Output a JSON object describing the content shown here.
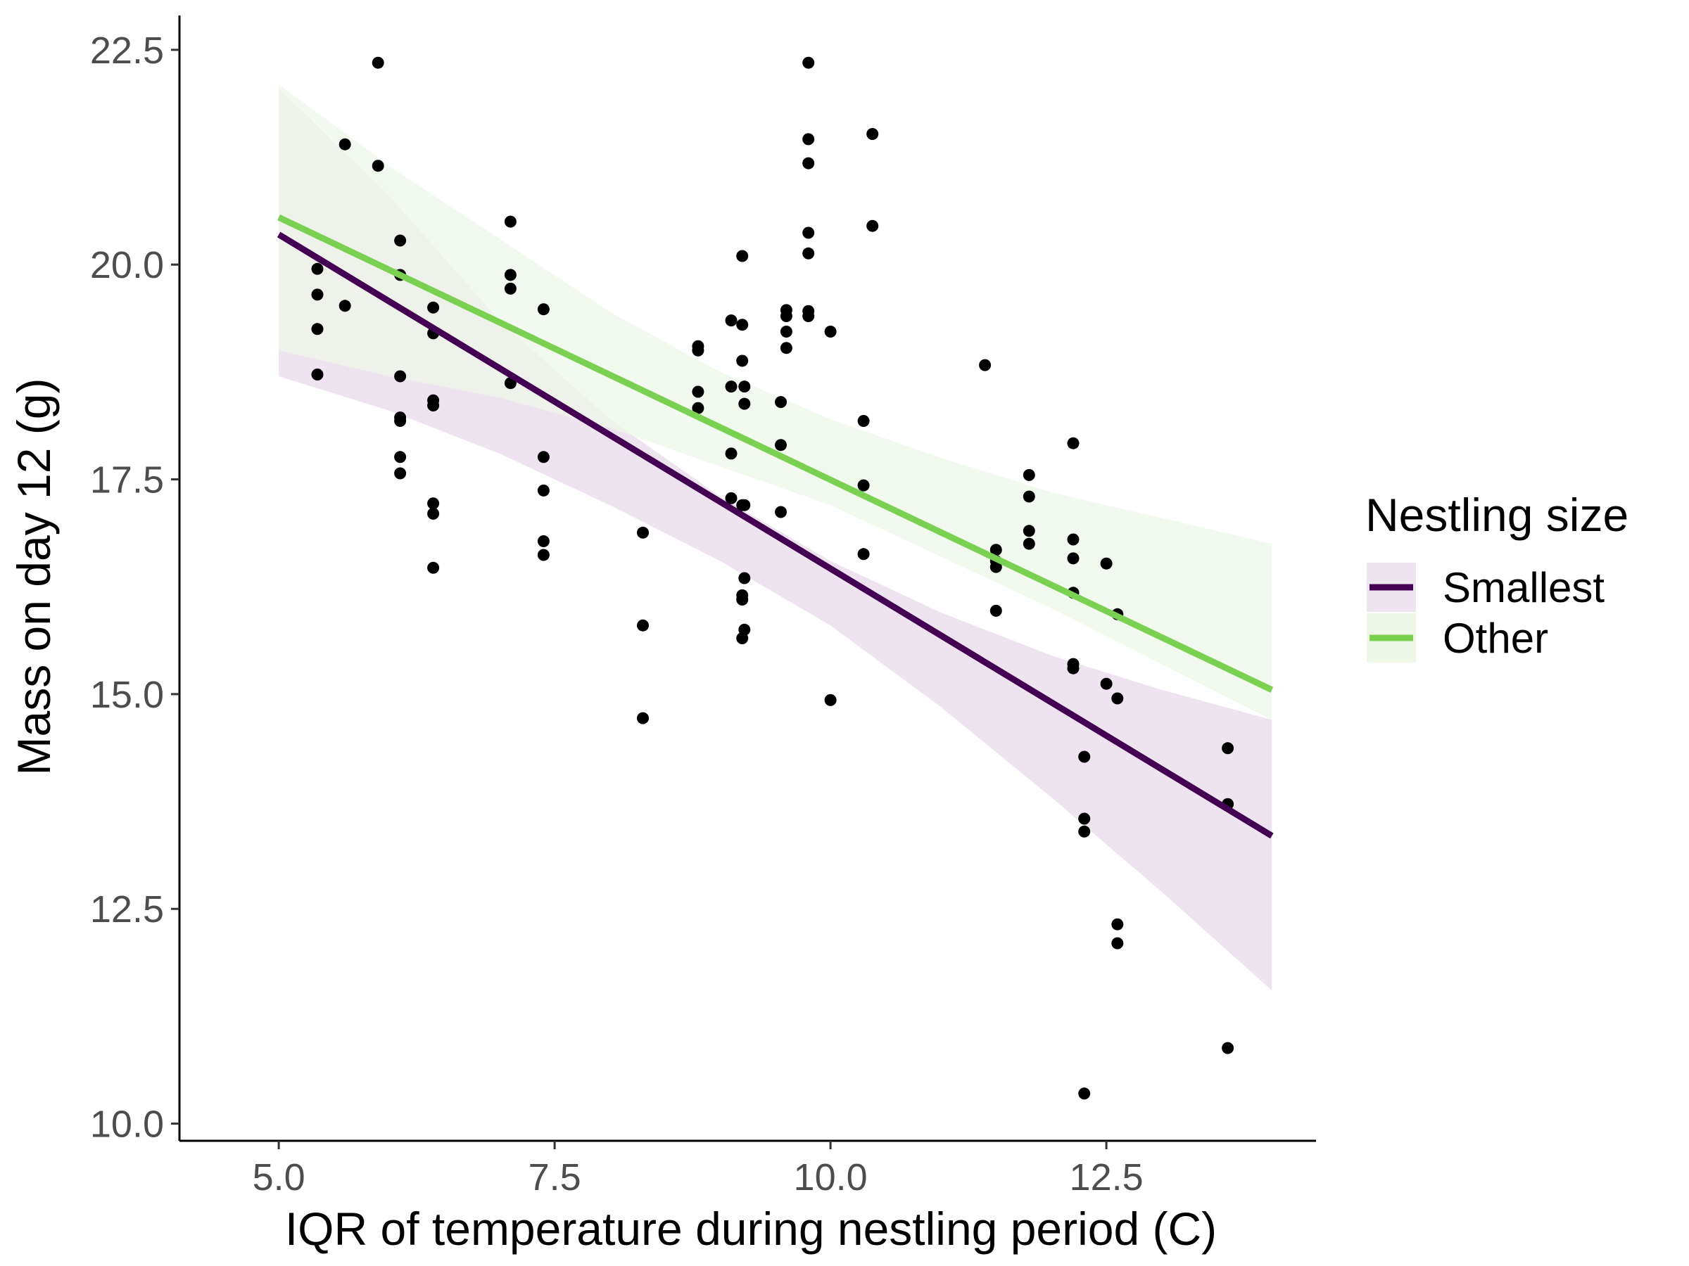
{
  "chart_data": {
    "type": "scatter",
    "xlabel": "IQR of temperature during nestling period (C)",
    "ylabel": "Mass on day 12 (g)",
    "xlim": [
      4.1,
      14.4
    ],
    "ylim": [
      9.8,
      22.9
    ],
    "x_ticks": [
      5.0,
      7.5,
      10.0,
      12.5
    ],
    "y_ticks": [
      10.0,
      12.5,
      15.0,
      17.5,
      20.0,
      22.5
    ],
    "x_tick_labels": [
      "5.0",
      "7.5",
      "10.0",
      "12.5"
    ],
    "y_tick_labels": [
      "10.0",
      "12.5",
      "15.0",
      "17.5",
      "20.0",
      "22.5"
    ],
    "grid": false,
    "legend": {
      "title": "Nestling size",
      "position": "right",
      "entries": [
        {
          "label": "Smallest",
          "line_color": "#440154",
          "fill_color": "#ede4ef"
        },
        {
          "label": "Other",
          "line_color": "#7ad151",
          "fill_color": "#eef7e8"
        }
      ]
    },
    "points": [
      [
        5.35,
        19.95
      ],
      [
        5.35,
        19.65
      ],
      [
        5.35,
        19.25
      ],
      [
        5.35,
        18.72
      ],
      [
        5.6,
        21.4
      ],
      [
        5.6,
        19.52
      ],
      [
        5.9,
        22.35
      ],
      [
        5.9,
        21.15
      ],
      [
        6.1,
        20.28
      ],
      [
        6.1,
        19.88
      ],
      [
        6.1,
        18.7
      ],
      [
        6.1,
        18.22
      ],
      [
        6.1,
        18.18
      ],
      [
        6.1,
        17.76
      ],
      [
        6.1,
        17.57
      ],
      [
        6.4,
        19.5
      ],
      [
        6.4,
        19.2
      ],
      [
        6.4,
        18.42
      ],
      [
        6.4,
        18.36
      ],
      [
        6.4,
        17.22
      ],
      [
        6.4,
        17.1
      ],
      [
        6.4,
        16.47
      ],
      [
        7.1,
        20.5
      ],
      [
        7.1,
        19.88
      ],
      [
        7.1,
        19.72
      ],
      [
        7.1,
        18.62
      ],
      [
        7.4,
        19.48
      ],
      [
        7.4,
        17.76
      ],
      [
        7.4,
        17.37
      ],
      [
        7.4,
        16.78
      ],
      [
        7.4,
        16.62
      ],
      [
        8.3,
        16.88
      ],
      [
        8.3,
        15.8
      ],
      [
        8.3,
        14.72
      ],
      [
        8.8,
        19.05
      ],
      [
        8.8,
        19.0
      ],
      [
        8.8,
        18.52
      ],
      [
        8.8,
        18.33
      ],
      [
        9.1,
        19.35
      ],
      [
        9.1,
        18.58
      ],
      [
        9.1,
        17.8
      ],
      [
        9.1,
        17.28
      ],
      [
        9.2,
        20.1
      ],
      [
        9.2,
        19.3
      ],
      [
        9.2,
        18.88
      ],
      [
        9.2,
        17.2
      ],
      [
        9.2,
        16.15
      ],
      [
        9.2,
        16.1
      ],
      [
        9.2,
        15.65
      ],
      [
        9.22,
        18.58
      ],
      [
        9.22,
        18.38
      ],
      [
        9.22,
        17.2
      ],
      [
        9.22,
        16.35
      ],
      [
        9.22,
        15.75
      ],
      [
        9.55,
        18.4
      ],
      [
        9.55,
        17.9
      ],
      [
        9.55,
        17.12
      ],
      [
        9.6,
        19.47
      ],
      [
        9.6,
        19.4
      ],
      [
        9.6,
        19.22
      ],
      [
        9.6,
        19.03
      ],
      [
        9.8,
        22.35
      ],
      [
        9.8,
        21.46
      ],
      [
        9.8,
        21.18
      ],
      [
        9.8,
        20.37
      ],
      [
        9.8,
        20.13
      ],
      [
        9.8,
        19.46
      ],
      [
        9.8,
        19.4
      ],
      [
        10.0,
        19.22
      ],
      [
        10.0,
        14.93
      ],
      [
        10.3,
        18.18
      ],
      [
        10.3,
        17.43
      ],
      [
        10.3,
        16.63
      ],
      [
        10.38,
        21.52
      ],
      [
        10.38,
        20.45
      ],
      [
        11.4,
        18.83
      ],
      [
        11.5,
        16.68
      ],
      [
        11.5,
        16.55
      ],
      [
        11.5,
        16.48
      ],
      [
        11.5,
        15.97
      ],
      [
        11.8,
        17.55
      ],
      [
        11.8,
        17.3
      ],
      [
        11.8,
        16.9
      ],
      [
        11.8,
        16.75
      ],
      [
        12.2,
        17.92
      ],
      [
        12.2,
        16.8
      ],
      [
        12.2,
        16.58
      ],
      [
        12.2,
        16.18
      ],
      [
        12.2,
        15.35
      ],
      [
        12.2,
        15.3
      ],
      [
        12.3,
        14.27
      ],
      [
        12.3,
        13.55
      ],
      [
        12.3,
        13.4
      ],
      [
        12.3,
        10.35
      ],
      [
        12.5,
        16.52
      ],
      [
        12.5,
        15.12
      ],
      [
        12.6,
        15.93
      ],
      [
        12.6,
        14.95
      ],
      [
        12.6,
        12.32
      ],
      [
        12.6,
        12.1
      ],
      [
        13.6,
        14.37
      ],
      [
        13.6,
        13.72
      ],
      [
        13.6,
        10.88
      ]
    ],
    "series": [
      {
        "name": "Smallest",
        "color": "#440154",
        "fill": "#ede4ef",
        "line": [
          [
            5.0,
            20.35
          ],
          [
            14.0,
            13.35
          ]
        ],
        "ci_upper": [
          [
            5.0,
            22.05
          ],
          [
            6.0,
            20.8
          ],
          [
            7.0,
            19.35
          ],
          [
            8.0,
            18.2
          ],
          [
            9.0,
            17.3
          ],
          [
            10.0,
            16.55
          ],
          [
            11.0,
            15.95
          ],
          [
            12.0,
            15.45
          ],
          [
            13.0,
            15.05
          ],
          [
            14.0,
            14.7
          ]
        ],
        "ci_lower": [
          [
            5.0,
            18.7
          ],
          [
            6.0,
            18.3
          ],
          [
            7.0,
            17.8
          ],
          [
            8.0,
            17.2
          ],
          [
            9.0,
            16.55
          ],
          [
            10.0,
            15.8
          ],
          [
            11.0,
            14.85
          ],
          [
            12.0,
            13.8
          ],
          [
            13.0,
            12.7
          ],
          [
            14.0,
            11.55
          ]
        ]
      },
      {
        "name": "Other",
        "color": "#7ad151",
        "fill": "#eef7e8",
        "line": [
          [
            5.0,
            20.55
          ],
          [
            14.0,
            15.05
          ]
        ],
        "ci_upper": [
          [
            5.0,
            22.1
          ],
          [
            6.0,
            21.15
          ],
          [
            7.0,
            20.3
          ],
          [
            8.0,
            19.45
          ],
          [
            9.0,
            18.75
          ],
          [
            10.0,
            18.2
          ],
          [
            11.0,
            17.75
          ],
          [
            12.0,
            17.35
          ],
          [
            13.0,
            17.05
          ],
          [
            14.0,
            16.75
          ]
        ],
        "ci_lower": [
          [
            5.0,
            19.0
          ],
          [
            6.0,
            18.7
          ],
          [
            7.0,
            18.45
          ],
          [
            8.0,
            18.1
          ],
          [
            9.0,
            17.65
          ],
          [
            10.0,
            17.2
          ],
          [
            11.0,
            16.6
          ],
          [
            12.0,
            16.0
          ],
          [
            13.0,
            15.35
          ],
          [
            14.0,
            14.7
          ]
        ]
      }
    ],
    "point_color": "#000000",
    "axis_color": "#000000"
  }
}
